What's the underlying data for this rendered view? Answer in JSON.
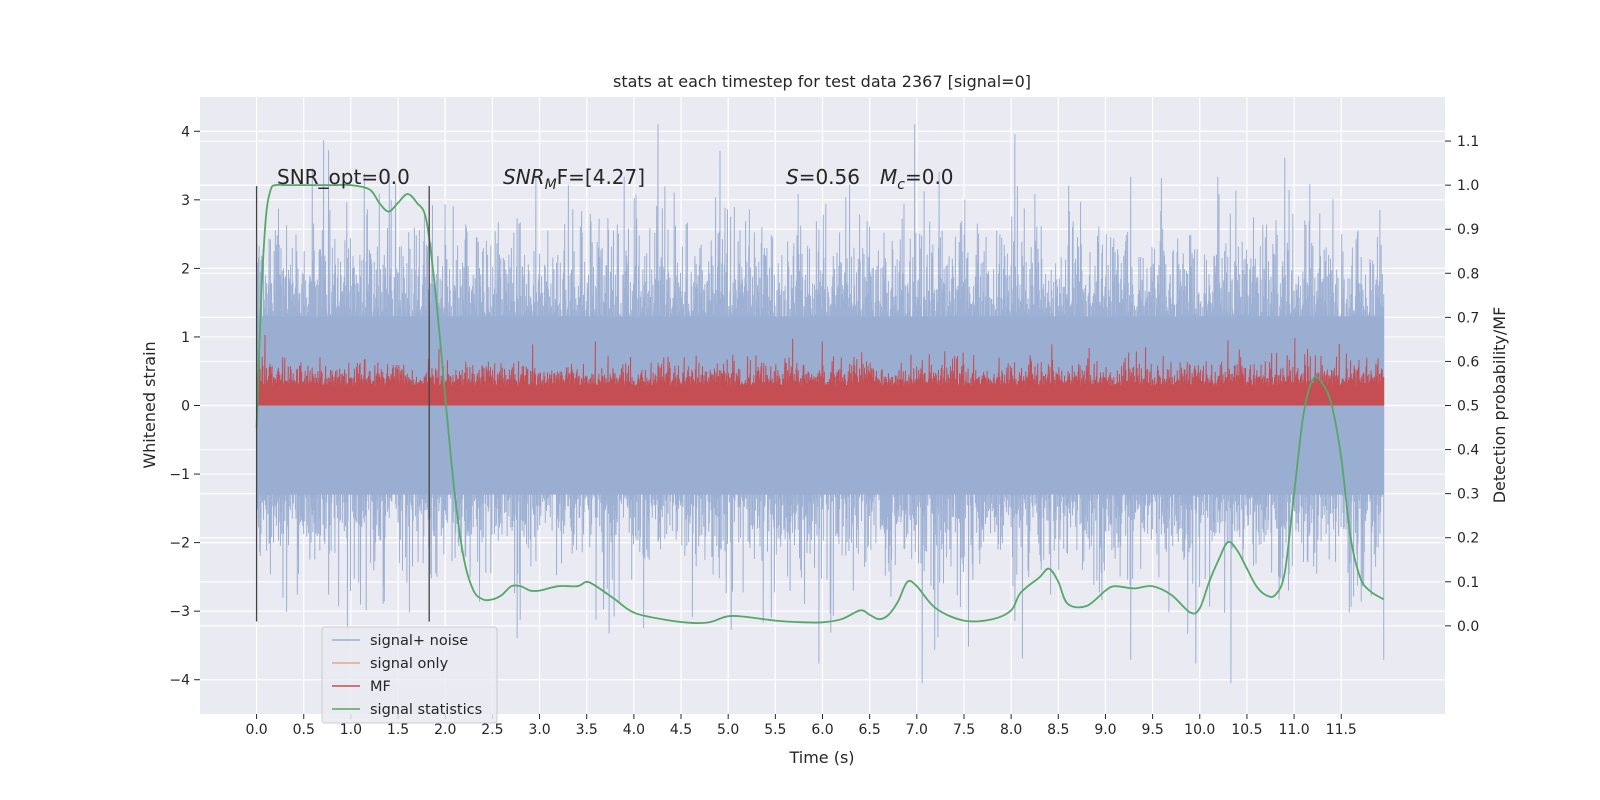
{
  "chart_data": {
    "type": "line",
    "title": "stats at each timestep for test data 2367 [signal=0]",
    "xlabel": "Time (s)",
    "ylabel_left": "Whitened strain",
    "ylabel_right": "Detection probability/MF",
    "xlim": [
      -0.6,
      12.6
    ],
    "ylim_left": [
      -4.5,
      4.5
    ],
    "ylim_right": [
      -0.2,
      1.2
    ],
    "x_ticks": [
      0.0,
      0.5,
      1.0,
      1.5,
      2.0,
      2.5,
      3.0,
      3.5,
      4.0,
      4.5,
      5.0,
      5.5,
      6.0,
      6.5,
      7.0,
      7.5,
      8.0,
      8.5,
      9.0,
      9.5,
      10.0,
      10.5,
      11.0,
      11.5
    ],
    "x_tick_labels": [
      "0.0",
      "0.5",
      "1.0",
      "1.5",
      "2.0",
      "2.5",
      "3.0",
      "3.5",
      "4.0",
      "4.5",
      "5.0",
      "5.5",
      "6.0",
      "6.5",
      "7.0",
      "7.5",
      "8.0",
      "8.5",
      "9.0",
      "9.5",
      "10.0",
      "10.5",
      "11.0",
      "11.5"
    ],
    "y_left_ticks": [
      -4,
      -3,
      -2,
      -1,
      0,
      1,
      2,
      3,
      4
    ],
    "y_left_tick_labels": [
      "−4",
      "−3",
      "−2",
      "−1",
      "0",
      "1",
      "2",
      "3",
      "4"
    ],
    "y_right_ticks": [
      0.0,
      0.1,
      0.2,
      0.3,
      0.4,
      0.5,
      0.6,
      0.7,
      0.8,
      0.9,
      1.0,
      1.1
    ],
    "y_right_tick_labels": [
      "0.0",
      "0.1",
      "0.2",
      "0.3",
      "0.4",
      "0.5",
      "0.6",
      "0.7",
      "0.8",
      "0.9",
      "1.0",
      "1.1"
    ],
    "grid": true,
    "legend_placement": "lower-left",
    "colors": {
      "background": "#eaeaf2",
      "grid": "#ffffff",
      "signal_noise": "#9aaed2",
      "signal_only": "#e8a587",
      "mf": "#c44e52",
      "signal_statistics": "#55a868",
      "vline": "#444444"
    },
    "series": [
      {
        "name": "signal+ noise",
        "axis": "left",
        "x_range": [
          0.0,
          11.95
        ],
        "band_approx": {
          "typical_min": -2.0,
          "typical_max": 2.2,
          "peak_min": -4.05,
          "peak_max": 4.1
        }
      },
      {
        "name": "signal only",
        "axis": "left",
        "values_note": ""
      },
      {
        "name": "MF",
        "axis": "right",
        "x_range": [
          0.0,
          11.95
        ],
        "band_approx": {
          "min": 0.5,
          "typical_max": 0.62,
          "peak_max": 0.66
        }
      },
      {
        "name": "signal statistics",
        "axis": "right",
        "x": [
          0.0,
          0.05,
          0.1,
          0.15,
          0.2,
          0.3,
          0.5,
          0.8,
          1.0,
          1.2,
          1.3,
          1.4,
          1.5,
          1.6,
          1.7,
          1.8,
          1.9,
          2.0,
          2.1,
          2.2,
          2.3,
          2.4,
          2.5,
          2.6,
          2.7,
          2.8,
          2.9,
          3.0,
          3.2,
          3.4,
          3.5,
          3.6,
          3.8,
          4.0,
          4.3,
          4.6,
          4.8,
          5.0,
          5.2,
          5.5,
          5.8,
          6.0,
          6.2,
          6.4,
          6.5,
          6.6,
          6.7,
          6.8,
          6.9,
          7.0,
          7.2,
          7.5,
          7.8,
          8.0,
          8.1,
          8.3,
          8.4,
          8.5,
          8.6,
          8.8,
          9.0,
          9.1,
          9.3,
          9.5,
          9.7,
          9.9,
          10.0,
          10.1,
          10.2,
          10.3,
          10.4,
          10.5,
          10.6,
          10.7,
          10.8,
          10.9,
          11.0,
          11.1,
          11.2,
          11.3,
          11.4,
          11.5,
          11.6,
          11.7,
          11.8,
          11.95
        ],
        "values": [
          0.45,
          0.75,
          0.93,
          0.99,
          1.0,
          1.0,
          1.0,
          1.0,
          1.0,
          0.99,
          0.96,
          0.94,
          0.96,
          0.98,
          0.96,
          0.92,
          0.75,
          0.52,
          0.3,
          0.15,
          0.08,
          0.06,
          0.06,
          0.07,
          0.09,
          0.09,
          0.08,
          0.08,
          0.09,
          0.09,
          0.1,
          0.09,
          0.06,
          0.03,
          0.015,
          0.007,
          0.008,
          0.022,
          0.02,
          0.012,
          0.008,
          0.008,
          0.015,
          0.035,
          0.025,
          0.015,
          0.025,
          0.055,
          0.1,
          0.09,
          0.04,
          0.012,
          0.015,
          0.035,
          0.075,
          0.11,
          0.13,
          0.1,
          0.05,
          0.045,
          0.08,
          0.09,
          0.085,
          0.09,
          0.07,
          0.03,
          0.04,
          0.1,
          0.15,
          0.19,
          0.17,
          0.13,
          0.09,
          0.07,
          0.07,
          0.12,
          0.3,
          0.48,
          0.56,
          0.55,
          0.5,
          0.38,
          0.2,
          0.11,
          0.08,
          0.06
        ]
      }
    ],
    "vlines_x": [
      0.0,
      1.83
    ],
    "vlines_y_range_left": [
      -3.15,
      3.2
    ],
    "annotations": {
      "snr_opt": "SNR_opt=0.0",
      "snr_mf_sym": "SNR",
      "snr_mf_sub": "M",
      "snr_mf_rest": "F=[4.27]",
      "s_sym": "S",
      "s_rest": "=0.56",
      "mc_sym": "M",
      "mc_sub": "c",
      "mc_rest": "=0.0"
    },
    "legend": {
      "signal_noise": "signal+ noise",
      "signal_only": "signal only",
      "mf": "MF",
      "signal_statistics": "signal statistics"
    }
  }
}
